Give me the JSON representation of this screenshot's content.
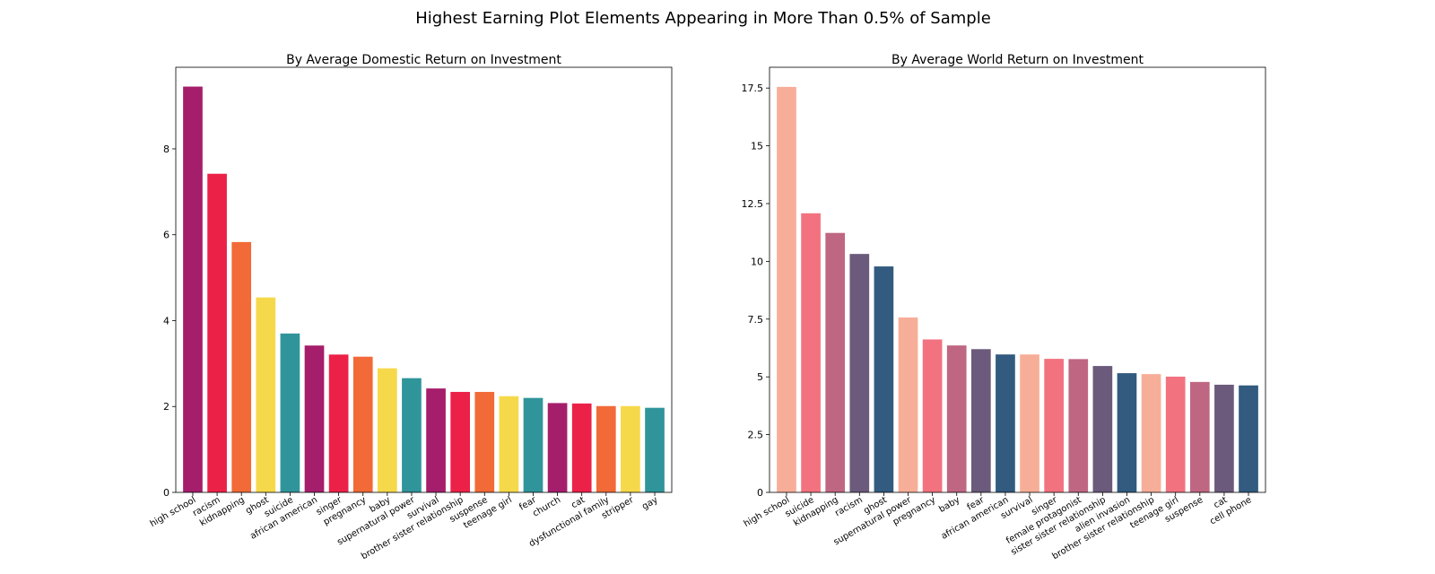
{
  "figure": {
    "title": "Highest Earning Plot Elements Appearing in More Than 0.5% of Sample"
  },
  "chart_data": [
    {
      "type": "bar",
      "title": "By Average Domestic Return on Investment",
      "xlabel": "",
      "ylabel": "",
      "ylim": [
        0,
        9.9
      ],
      "yticks": [
        0,
        2,
        4,
        6,
        8
      ],
      "ytick_labels": [
        "0",
        "2",
        "4",
        "6",
        "8"
      ],
      "grid": false,
      "categories": [
        "high school",
        "racism",
        "kidnapping",
        "ghost",
        "suicide",
        "african american",
        "singer",
        "pregnancy",
        "baby",
        "supernatural power",
        "survival",
        "brother sister relationship",
        "suspense",
        "teenage girl",
        "fear",
        "church",
        "cat",
        "dysfunctional family",
        "stripper",
        "gay"
      ],
      "values": [
        9.45,
        7.42,
        5.83,
        4.54,
        3.7,
        3.42,
        3.21,
        3.16,
        2.89,
        2.66,
        2.42,
        2.34,
        2.34,
        2.24,
        2.2,
        2.08,
        2.07,
        2.01,
        2.01,
        1.97
      ],
      "colors": [
        "#a51e6b",
        "#ec2148",
        "#f16a37",
        "#f6d94b",
        "#30959a",
        "#a51e6b",
        "#ec2148",
        "#f16a37",
        "#f6d94b",
        "#30959a",
        "#a51e6b",
        "#ec2148",
        "#f16a37",
        "#f6d94b",
        "#30959a",
        "#a51e6b",
        "#ec2148",
        "#f16a37",
        "#f6d94b",
        "#30959a"
      ]
    },
    {
      "type": "bar",
      "title": "By Average World Return on Investment",
      "xlabel": "",
      "ylabel": "",
      "ylim": [
        0,
        18.4
      ],
      "yticks": [
        0,
        2.5,
        5,
        7.5,
        10,
        12.5,
        15,
        17.5
      ],
      "ytick_labels": [
        "0",
        "2.5",
        "5",
        "7.5",
        "10",
        "12.5",
        "15",
        "17.5"
      ],
      "grid": false,
      "categories": [
        "high school",
        "suicide",
        "kidnapping",
        "racism",
        "ghost",
        "supernatural power",
        "pregnancy",
        "baby",
        "fear",
        "african american",
        "survival",
        "singer",
        "female protagonist",
        "sister sister relationship",
        "alien invasion",
        "brother sister relationship",
        "teenage girl",
        "suspense",
        "cat",
        "cell phone"
      ],
      "values": [
        17.55,
        12.08,
        11.23,
        10.32,
        9.78,
        7.57,
        6.62,
        6.36,
        6.2,
        5.97,
        5.97,
        5.78,
        5.77,
        5.47,
        5.16,
        5.12,
        5.01,
        4.78,
        4.66,
        4.63
      ],
      "colors": [
        "#f7ae98",
        "#f3727f",
        "#bf6782",
        "#6b5a7b",
        "#325b7f",
        "#f7ae98",
        "#f3727f",
        "#bf6782",
        "#6b5a7b",
        "#325b7f",
        "#f7ae98",
        "#f3727f",
        "#bf6782",
        "#6b5a7b",
        "#325b7f",
        "#f7ae98",
        "#f3727f",
        "#bf6782",
        "#6b5a7b",
        "#325b7f"
      ]
    }
  ]
}
